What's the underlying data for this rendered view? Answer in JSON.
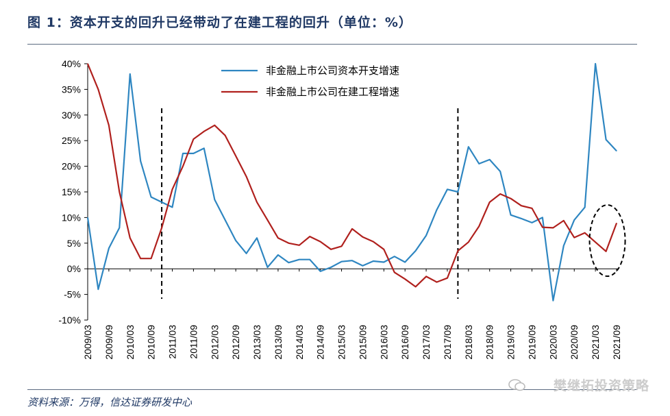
{
  "header": {
    "title": "图 1：资本开支的回升已经带动了在建工程的回升（单位：%）"
  },
  "footer": {
    "source": "资料来源：万得，信达证券研发中心",
    "watermark": "樊继拓投资策略"
  },
  "colors": {
    "blue": "#2e86c1",
    "red": "#b0201d",
    "navy": "#1f3864"
  },
  "chart_data": {
    "type": "line",
    "title": "图 1：资本开支的回升已经带动了在建工程的回升（单位：%）",
    "ylim": [
      -10,
      40
    ],
    "yticks": [
      "-10%",
      "-5%",
      "0%",
      "5%",
      "10%",
      "15%",
      "20%",
      "25%",
      "30%",
      "35%",
      "40%"
    ],
    "ytick_values": [
      -10,
      -5,
      0,
      5,
      10,
      15,
      20,
      25,
      30,
      35,
      40
    ],
    "xtick_labels": [
      "2009/03",
      "2009/09",
      "2010/03",
      "2010/09",
      "2011/03",
      "2011/09",
      "2012/03",
      "2012/09",
      "2013/03",
      "2013/09",
      "2014/03",
      "2014/09",
      "2015/03",
      "2015/09",
      "2016/03",
      "2016/09",
      "2017/03",
      "2017/09",
      "2018/03",
      "2018/09",
      "2019/03",
      "2019/09",
      "2020/03",
      "2020/09",
      "2021/03",
      "2021/09"
    ],
    "x": [
      "2009/03",
      "2009/06",
      "2009/09",
      "2009/12",
      "2010/03",
      "2010/06",
      "2010/09",
      "2010/12",
      "2011/03",
      "2011/06",
      "2011/09",
      "2011/12",
      "2012/03",
      "2012/06",
      "2012/09",
      "2012/12",
      "2013/03",
      "2013/06",
      "2013/09",
      "2013/12",
      "2014/03",
      "2014/06",
      "2014/09",
      "2014/12",
      "2015/03",
      "2015/06",
      "2015/09",
      "2015/12",
      "2016/03",
      "2016/06",
      "2016/09",
      "2016/12",
      "2017/03",
      "2017/06",
      "2017/09",
      "2017/12",
      "2018/03",
      "2018/06",
      "2018/09",
      "2018/12",
      "2019/03",
      "2019/06",
      "2019/09",
      "2019/12",
      "2020/03",
      "2020/06",
      "2020/09",
      "2020/12",
      "2021/03",
      "2021/06",
      "2021/09"
    ],
    "series": [
      {
        "name": "非金融上市公司资本开支增速",
        "color": "#2e86c1",
        "values": [
          10,
          -4,
          4,
          8,
          38,
          21,
          14,
          13,
          12,
          22.5,
          22.5,
          23.5,
          13.5,
          9.5,
          5.5,
          3,
          6,
          0.3,
          2.7,
          1.2,
          1.8,
          1.8,
          -0.5,
          0.3,
          1.4,
          1.6,
          0.6,
          1.5,
          1.3,
          2.4,
          1.3,
          3.5,
          6.5,
          11.5,
          15.5,
          15,
          23.8,
          20.5,
          21.3,
          19,
          10.5,
          9.8,
          9,
          10,
          -6.2,
          4.5,
          9.5,
          12,
          40,
          25.2,
          23
        ]
      },
      {
        "name": "非金融上市公司在建工程增速",
        "color": "#b0201d",
        "values": [
          40,
          35,
          28,
          15,
          6,
          2,
          2,
          8,
          15.5,
          20,
          25.3,
          26.8,
          28,
          26,
          22,
          18,
          13,
          9.5,
          6,
          5,
          4.6,
          6.3,
          5.3,
          3.8,
          4.4,
          7.8,
          6.2,
          5.3,
          3.8,
          -0.7,
          -2,
          -3.5,
          -1.5,
          -2.6,
          -1.8,
          3.5,
          5.2,
          8.3,
          13,
          14.6,
          13.7,
          12.3,
          11.8,
          8.1,
          8,
          9.4,
          6.1,
          7,
          5.2,
          3.4,
          8.9
        ]
      }
    ],
    "vlines": [
      "2010/12",
      "2017/12"
    ],
    "ellipse_around": "2021/03-2021/09 在建工程",
    "legend": "top-center",
    "grid": false
  }
}
